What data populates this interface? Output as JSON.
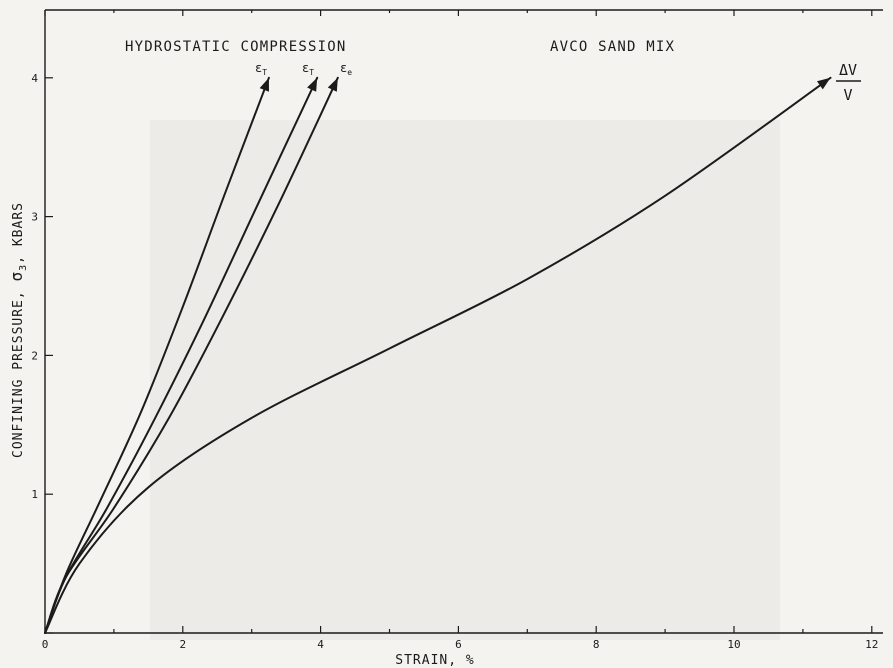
{
  "chart_data": {
    "type": "line",
    "titles": [
      "HYDROSTATIC COMPRESSION",
      "AVCO SAND MIX"
    ],
    "xlabel": "STRAIN, %",
    "ylabel": "CONFINING PRESSURE, σ3, KBARS",
    "xlim": [
      0,
      12.4
    ],
    "ylim": [
      0,
      4.4
    ],
    "x_ticks": [
      0,
      2,
      4,
      6,
      8,
      10,
      12
    ],
    "y_ticks": [
      1,
      2,
      3,
      4
    ],
    "grid": false,
    "series": [
      {
        "name": "εT",
        "x": [
          0,
          0.3,
          0.8,
          1.4,
          2.0,
          2.6,
          3.25
        ],
        "y": [
          0,
          0.42,
          0.95,
          1.6,
          2.35,
          3.15,
          4.0
        ]
      },
      {
        "name": "εT",
        "x": [
          0,
          0.3,
          0.9,
          1.6,
          2.3,
          3.1,
          3.95
        ],
        "y": [
          0,
          0.4,
          0.9,
          1.55,
          2.25,
          3.1,
          4.0
        ]
      },
      {
        "name": "εe",
        "x": [
          0,
          0.3,
          1.0,
          1.8,
          2.6,
          3.4,
          4.25
        ],
        "y": [
          0,
          0.4,
          0.9,
          1.55,
          2.3,
          3.1,
          4.0
        ]
      },
      {
        "name": "ΔV/V",
        "x": [
          0,
          0.5,
          1.5,
          3.0,
          5.0,
          7.0,
          9.0,
          11.4
        ],
        "y": [
          0,
          0.5,
          1.05,
          1.55,
          2.05,
          2.55,
          3.15,
          4.0
        ]
      }
    ],
    "curve_labels": [
      {
        "main": "ε",
        "sub": "T"
      },
      {
        "main": "ε",
        "sub": "T"
      },
      {
        "main": "ε",
        "sub": "e"
      }
    ],
    "dv_label": {
      "numerator": "ΔV",
      "denominator": "V"
    },
    "ylabel_parts": {
      "before": "CONFINING PRESSURE, ",
      "sigma": "σ",
      "sub": "3",
      "after": ", KBARS"
    }
  }
}
